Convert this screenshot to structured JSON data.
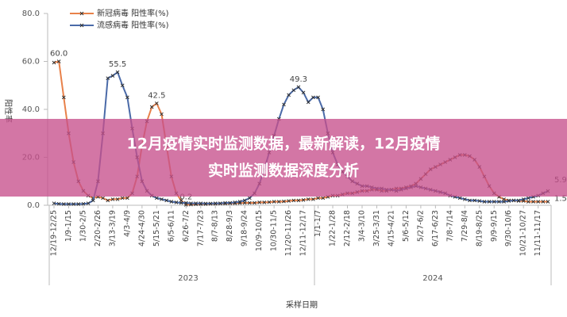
{
  "chart_data": {
    "type": "line",
    "y_label": "阳性率",
    "x_label": "采样日期",
    "year_labels": [
      "2023",
      "2024"
    ],
    "ylim": [
      0,
      80
    ],
    "yticks": [
      {
        "value": 0,
        "label": "0.0"
      },
      {
        "value": 20,
        "label": "20.0"
      },
      {
        "value": 40,
        "label": "40.0"
      },
      {
        "value": 60,
        "label": "60.0"
      },
      {
        "value": 80,
        "label": "80.0"
      }
    ],
    "categories": [
      "12/19-12/25",
      null,
      null,
      "1/9-1/15",
      null,
      null,
      "1/30-2/5",
      null,
      null,
      "2/20-2/26",
      null,
      null,
      "3/13-3/19",
      null,
      null,
      "4/3-4/9",
      null,
      null,
      "4/24-4/30",
      null,
      null,
      "5/15-5/21",
      null,
      null,
      "6/5-6/11",
      null,
      null,
      "6/26-7/2",
      null,
      null,
      "7/17-7/23",
      null,
      null,
      "8/7-8/13",
      null,
      null,
      "8/28-9/3",
      null,
      null,
      "9/18-9/24",
      null,
      null,
      "10/9-10/15",
      null,
      null,
      "10/30-11/5",
      null,
      null,
      "11/20-11/26",
      null,
      null,
      "12/11-12/17",
      null,
      null,
      "1/1-1/7",
      null,
      null,
      "1/22-1/28",
      null,
      null,
      "2/12-2/18",
      null,
      null,
      "3/4-3/10",
      null,
      null,
      "3/25-3/31",
      null,
      null,
      "4/15-4/21",
      null,
      null,
      "5/6-5/12",
      null,
      null,
      "5/27-6/2",
      null,
      null,
      "6/17-6/23",
      null,
      null,
      "7/8-7/14",
      null,
      null,
      "7/29-8/4",
      null,
      null,
      "8/19-8/25",
      null,
      null,
      "9/9-9/15",
      null,
      null,
      "9/30-10/6",
      null,
      null,
      "10/21-10/27",
      null,
      null,
      "11/11-11/17",
      null,
      null
    ],
    "series": [
      {
        "name": "新冠病毒 阳性率(%)",
        "color": "#e8814a",
        "values": [
          59.5,
          60.0,
          45,
          30,
          18,
          10,
          6,
          4,
          3,
          3.5,
          3,
          2,
          2.5,
          2.5,
          3,
          3,
          5,
          12,
          25,
          35,
          41,
          42.5,
          38,
          25,
          12,
          5,
          2,
          0.2,
          0.3,
          0.4,
          0.5,
          0.5,
          0.6,
          0.6,
          0.7,
          0.7,
          0.8,
          0.8,
          0.9,
          1,
          1,
          1,
          1.2,
          1.2,
          1.3,
          1.5,
          1.5,
          1.6,
          1.8,
          2,
          2,
          2.2,
          2.5,
          2.5,
          3,
          3,
          3.5,
          4,
          4,
          4.5,
          5,
          5,
          5.5,
          6,
          6,
          6.5,
          6.5,
          6,
          6,
          6.5,
          7,
          7,
          7.5,
          8,
          9,
          11,
          13,
          15,
          16,
          17,
          18,
          19,
          20,
          21,
          21,
          20.5,
          19,
          16,
          12,
          8,
          5,
          3.5,
          2.5,
          2,
          2,
          1.8,
          1.8,
          1.5,
          1.5,
          1.5,
          1.5,
          1.5
        ],
        "value_labels": {
          "1": "60.0",
          "21": "42.5",
          "27": "0.2",
          "101": "1.5"
        }
      },
      {
        "name": "流感病毒 阳性率(%)",
        "color": "#4a6aa8",
        "values": [
          0.8,
          0.6,
          0.5,
          0.5,
          0.5,
          0.5,
          0.6,
          0.8,
          2,
          10,
          30,
          53,
          54,
          55.5,
          50,
          45,
          32,
          20,
          10,
          6,
          4,
          3,
          2.5,
          2,
          1.5,
          1.2,
          1,
          1,
          0.8,
          0.8,
          0.8,
          0.7,
          0.7,
          0.8,
          0.8,
          1,
          1,
          1.2,
          1.5,
          2,
          3,
          5,
          9,
          15,
          22,
          29,
          36,
          42,
          46,
          48,
          49.3,
          47,
          43,
          45,
          45,
          40,
          30,
          22,
          17,
          14,
          12,
          10,
          9,
          8,
          8,
          7.5,
          7,
          7,
          6.5,
          6.5,
          6,
          6.5,
          7,
          7.5,
          8,
          7.5,
          7,
          6.5,
          6,
          5.5,
          5,
          4,
          3.5,
          3,
          2.5,
          2,
          2,
          1.8,
          1.5,
          1.5,
          1.5,
          1.5,
          1.5,
          1.8,
          2,
          2,
          2.5,
          3,
          3.5,
          4,
          5,
          5.9
        ],
        "value_labels": {
          "13": "55.5",
          "50": "49.3",
          "101": "5.9"
        }
      }
    ]
  },
  "banner": {
    "lines": [
      "12月疫情实时监测数据，最新解读，12月疫情",
      "实时监测数据深度分析"
    ]
  }
}
